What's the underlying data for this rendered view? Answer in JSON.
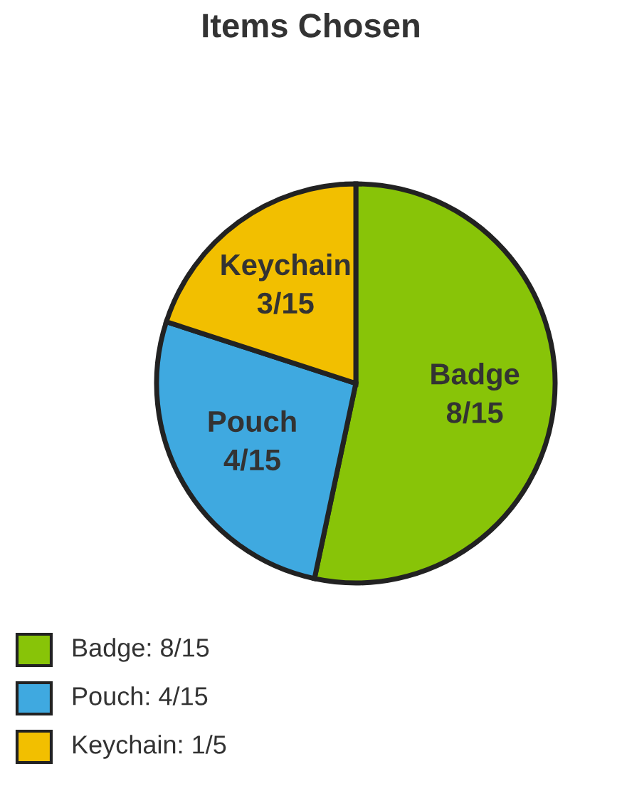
{
  "chart_data": {
    "type": "pie",
    "title": "Items Chosen",
    "categories": [
      "Badge",
      "Pouch",
      "Keychain"
    ],
    "values": [
      53.33,
      26.67,
      20
    ],
    "value_labels": [
      "8/15",
      "4/15",
      "3/15"
    ],
    "colors": [
      "#88c408",
      "#3fa9e0",
      "#f2bf00"
    ],
    "annotations": [
      "Badge: 8/15",
      "Pouch: 4/15",
      "Keychain: 1/5"
    ]
  }
}
